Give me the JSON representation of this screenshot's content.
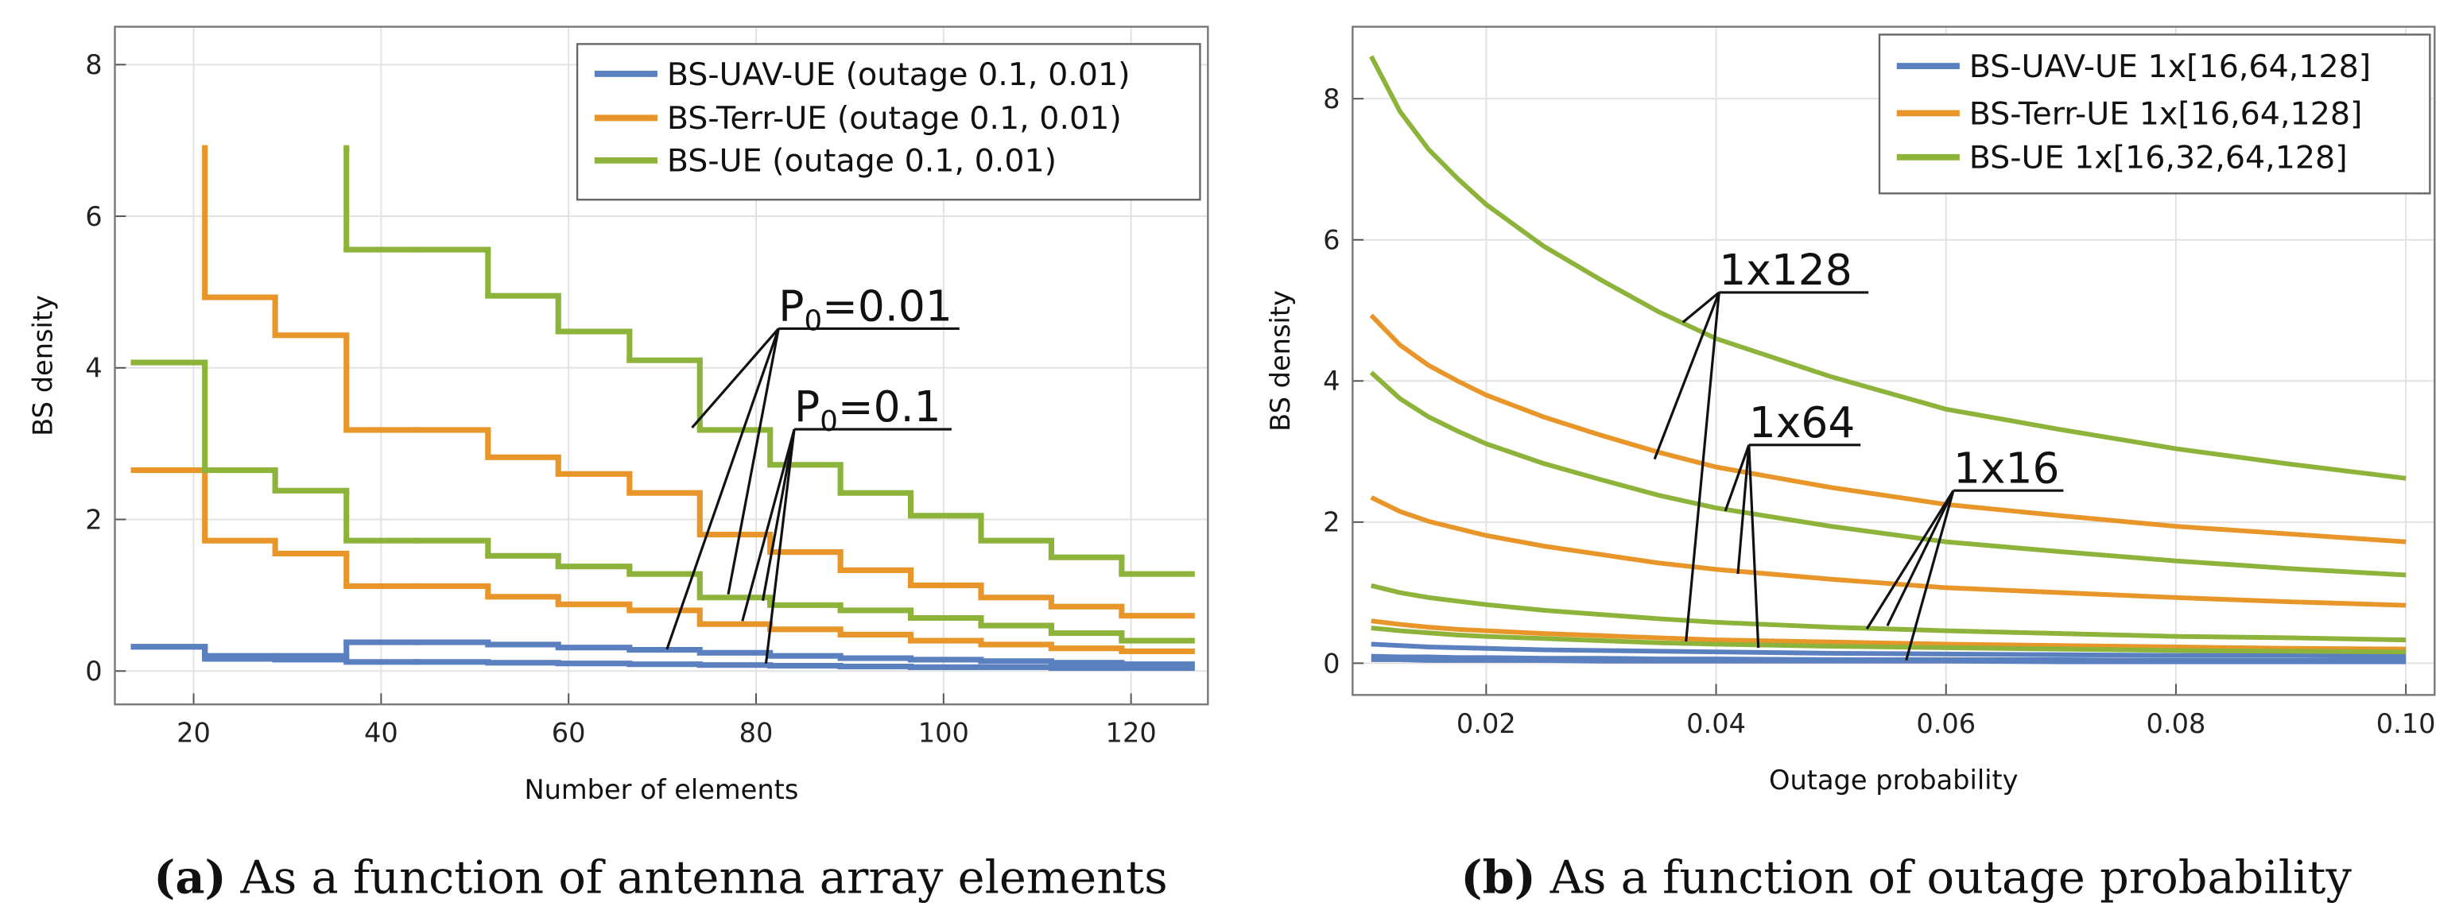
{
  "chart_data": [
    {
      "type": "step",
      "xlabel": "Number of elements",
      "ylabel": "BS density",
      "caption_label": "(a)",
      "caption": "As a function of antenna array elements",
      "xlim": [
        11.6,
        128.2
      ],
      "ylim": [
        -0.44,
        8.5
      ],
      "xticks": [
        20,
        40,
        60,
        80,
        100,
        120
      ],
      "yticks": [
        0,
        2,
        4,
        6,
        8
      ],
      "grid": true,
      "legend_position": "top-right",
      "series": [
        {
          "name": "BS-UAV-UE (outage 0.1, 0.01)",
          "color": "#5b80c0",
          "lines": [
            {
              "x": [
                13.6,
                21.2,
                28.7,
                36.3,
                43.8,
                51.4,
                58.9,
                66.5,
                74,
                81.5,
                89,
                96.5,
                104,
                111.5,
                119,
                126.5
              ],
              "values": [
                0.32,
                0.2,
                0.2,
                0.38,
                0.38,
                0.35,
                0.31,
                0.28,
                0.24,
                0.2,
                0.17,
                0.15,
                0.13,
                0.11,
                0.09
              ]
            },
            {
              "x": [
                13.6,
                21.2,
                28.7,
                36.3,
                43.8,
                51.4,
                58.9,
                66.5,
                74,
                81.5,
                89,
                96.5,
                104,
                111.5,
                119,
                126.5
              ],
              "values": [
                0.32,
                0.16,
                0.15,
                0.12,
                0.12,
                0.11,
                0.1,
                0.09,
                0.08,
                0.07,
                0.06,
                0.05,
                0.05,
                0.04,
                0.04
              ]
            }
          ]
        },
        {
          "name": "BS-Terr-UE (outage 0.1, 0.01)",
          "color": "#e8962a",
          "lines": [
            {
              "x": [
                21.2,
                21.2,
                28.7,
                36.3,
                43.8,
                51.4,
                58.9,
                66.5,
                74,
                81.5,
                89,
                96.5,
                104,
                111.5,
                119,
                126.5
              ],
              "values": [
                6.9,
                4.93,
                4.43,
                3.18,
                3.18,
                2.82,
                2.6,
                2.35,
                1.8,
                1.57,
                1.33,
                1.13,
                0.97,
                0.85,
                0.73
              ]
            },
            {
              "x": [
                13.6,
                21.2,
                28.7,
                36.3,
                43.8,
                51.4,
                58.9,
                66.5,
                74,
                81.5,
                89,
                96.5,
                104,
                111.5,
                119,
                126.5
              ],
              "values": [
                2.65,
                1.72,
                1.55,
                1.12,
                1.12,
                0.98,
                0.88,
                0.8,
                0.62,
                0.55,
                0.48,
                0.4,
                0.35,
                0.3,
                0.26
              ]
            }
          ]
        },
        {
          "name": "BS-UE (outage 0.1, 0.01)",
          "color": "#8db33a",
          "lines": [
            {
              "x": [
                36.3,
                36.3,
                43.8,
                51.4,
                58.9,
                66.5,
                74,
                81.5,
                89,
                96.5,
                104,
                111.5,
                119,
                126.5
              ],
              "values": [
                6.9,
                5.56,
                5.56,
                4.95,
                4.48,
                4.1,
                3.18,
                2.72,
                2.35,
                2.05,
                1.72,
                1.5,
                1.28
              ]
            },
            {
              "x": [
                13.6,
                21.2,
                28.7,
                36.3,
                43.8,
                51.4,
                58.9,
                66.5,
                74,
                81.5,
                89,
                96.5,
                104,
                111.5,
                119,
                126.5
              ],
              "values": [
                4.07,
                2.65,
                2.38,
                1.72,
                1.72,
                1.52,
                1.38,
                1.28,
                0.97,
                0.87,
                0.8,
                0.7,
                0.6,
                0.5,
                0.4
              ]
            }
          ]
        }
      ],
      "annotations": [
        {
          "text": "P",
          "subscript": "0",
          "suffix": "=0.01"
        },
        {
          "text": "P",
          "subscript": "0",
          "suffix": "=0.1"
        }
      ]
    },
    {
      "type": "line",
      "xlabel": "Outage probability",
      "ylabel": "BS density",
      "caption_label": "(b)",
      "caption": "As a function of outage probability",
      "xlim": [
        0.00838,
        0.1025
      ],
      "ylim": [
        -0.45,
        9.02
      ],
      "xticks": [
        0.02,
        0.04,
        0.06,
        0.08,
        {
          "value": 0.1,
          "label": "0.10"
        }
      ],
      "yticks": [
        0,
        2,
        4,
        6,
        8
      ],
      "grid": true,
      "legend_position": "top-right",
      "x": [
        0.01,
        0.0125,
        0.015,
        0.0175,
        0.02,
        0.025,
        0.03,
        0.035,
        0.04,
        0.05,
        0.06,
        0.07,
        0.08,
        0.09,
        0.1
      ],
      "series": [
        {
          "name": "BS-UAV-UE 1x[16,64,128]",
          "color": "#5b80c0",
          "lines": [
            {
              "values": [
                0.27,
                0.25,
                0.23,
                0.22,
                0.21,
                0.19,
                0.18,
                0.17,
                0.16,
                0.14,
                0.13,
                0.12,
                0.11,
                0.11,
                0.1
              ]
            },
            {
              "values": [
                0.1,
                0.09,
                0.09,
                0.08,
                0.08,
                0.07,
                0.07,
                0.06,
                0.06,
                0.05,
                0.05,
                0.05,
                0.04,
                0.04,
                0.04
              ]
            },
            {
              "values": [
                0.05,
                0.05,
                0.04,
                0.04,
                0.04,
                0.04,
                0.03,
                0.03,
                0.03,
                0.03,
                0.03,
                0.02,
                0.02,
                0.02,
                0.02
              ]
            }
          ]
        },
        {
          "name": "BS-Terr-UE 1x[16,64,128]",
          "color": "#e8962a",
          "lines": [
            {
              "values": [
                4.93,
                4.51,
                4.22,
                4.0,
                3.8,
                3.49,
                3.23,
                2.99,
                2.78,
                2.49,
                2.25,
                2.09,
                1.94,
                1.83,
                1.72
              ]
            },
            {
              "values": [
                2.35,
                2.15,
                2.01,
                1.91,
                1.81,
                1.66,
                1.54,
                1.42,
                1.33,
                1.19,
                1.07,
                1.0,
                0.93,
                0.87,
                0.82
              ]
            },
            {
              "values": [
                0.6,
                0.55,
                0.51,
                0.48,
                0.46,
                0.42,
                0.39,
                0.36,
                0.33,
                0.3,
                0.27,
                0.25,
                0.23,
                0.21,
                0.2
              ]
            }
          ]
        },
        {
          "name": "BS-UE 1x[16,32,64,128]",
          "color": "#8db33a",
          "lines": [
            {
              "values": [
                8.6,
                7.82,
                7.28,
                6.87,
                6.5,
                5.91,
                5.43,
                4.98,
                4.6,
                4.06,
                3.6,
                3.31,
                3.04,
                2.82,
                2.62
              ]
            },
            {
              "values": [
                4.12,
                3.75,
                3.49,
                3.29,
                3.11,
                2.83,
                2.6,
                2.38,
                2.2,
                1.94,
                1.72,
                1.58,
                1.45,
                1.34,
                1.25
              ]
            },
            {
              "values": [
                1.1,
                1.0,
                0.93,
                0.88,
                0.83,
                0.75,
                0.69,
                0.63,
                0.58,
                0.51,
                0.46,
                0.42,
                0.38,
                0.36,
                0.33
              ]
            },
            {
              "values": [
                0.5,
                0.46,
                0.43,
                0.4,
                0.38,
                0.35,
                0.32,
                0.29,
                0.27,
                0.24,
                0.22,
                0.2,
                0.18,
                0.17,
                0.16
              ]
            }
          ]
        }
      ],
      "annotations": [
        {
          "text": "1x128"
        },
        {
          "text": "1x64"
        },
        {
          "text": "1x16"
        }
      ]
    }
  ]
}
